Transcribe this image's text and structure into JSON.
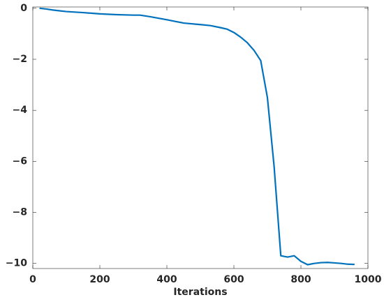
{
  "chart_data": {
    "type": "line",
    "xlabel": "Iterations",
    "x": [
      20,
      40,
      60,
      80,
      100,
      150,
      200,
      250,
      300,
      320,
      350,
      400,
      450,
      500,
      530,
      560,
      580,
      600,
      620,
      640,
      660,
      680,
      700,
      720,
      740,
      760,
      780,
      800,
      820,
      840,
      860,
      880,
      900,
      920,
      940,
      960
    ],
    "series": [
      {
        "color": "#0072bd",
        "values": [
          0,
          -0.03,
          -0.07,
          -0.1,
          -0.13,
          -0.17,
          -0.22,
          -0.25,
          -0.27,
          -0.27,
          -0.33,
          -0.45,
          -0.58,
          -0.64,
          -0.68,
          -0.76,
          -0.82,
          -0.95,
          -1.13,
          -1.35,
          -1.65,
          -2.05,
          -3.5,
          -6.2,
          -9.7,
          -9.75,
          -9.7,
          -9.92,
          -10.05,
          -10.0,
          -9.97,
          -9.96,
          -9.98,
          -10.0,
          -10.03,
          -10.04
        ]
      }
    ],
    "xlim": [
      0,
      1000
    ],
    "xticks": [
      0,
      200,
      400,
      600,
      800,
      1000
    ],
    "ylim": [
      -10.2,
      0.05
    ],
    "yticks": [
      {
        "value": -10,
        "label": "−10"
      },
      {
        "value": -8,
        "label": "−8"
      },
      {
        "value": -6,
        "label": "−6"
      },
      {
        "value": -4,
        "label": "−4"
      },
      {
        "value": -2,
        "label": "−2"
      },
      0
    ]
  }
}
